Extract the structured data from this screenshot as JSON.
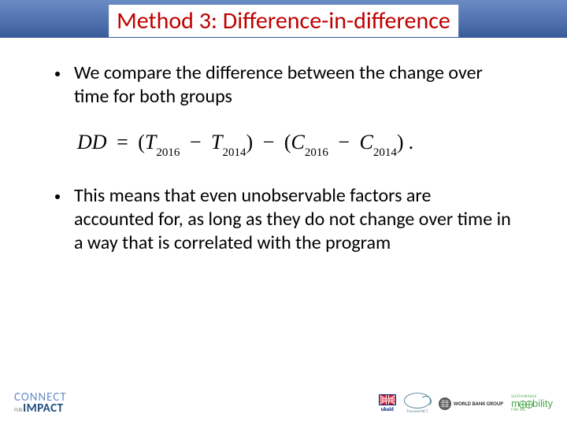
{
  "header": {
    "title": "Method 3: Difference-in-difference",
    "gradient_top": "#6a8bc4",
    "gradient_bottom": "#395a99",
    "title_color": "#c00000",
    "title_fontsize": 30
  },
  "bullets": [
    {
      "text": "We compare the difference between the change over time for both groups"
    },
    {
      "text": "This means that even unobservable factors are accounted for, as long as they do not change over time in a way that is correlated with the program"
    }
  ],
  "equation": {
    "lhs": "DD",
    "t_symbol": "T",
    "c_symbol": "C",
    "year_b": "2016",
    "year_a": "2014",
    "text_repr": "DD = (T_2016 − T_2014) − (C_2016 − C_2014)."
  },
  "body": {
    "bullet_fontsize": 24,
    "bullet_color": "#000000",
    "equation_fontsize": 26
  },
  "footer": {
    "connect_logo": {
      "line1": "CONNECT",
      "for": "FOR",
      "line2": "IMPACT",
      "color_light": "#6a8bc4",
      "color_dark": "#1a4a7a"
    },
    "ukaid": {
      "label": "ukaid"
    },
    "oval": {
      "label": "Transnet-NCT"
    },
    "wbg": {
      "label": "WORLD BANK GROUP"
    },
    "mobility": {
      "top": "SUSTAINABLE",
      "word_pre": "m",
      "word_post": "bility",
      "sub": "FOR ALL",
      "color": "#4aa84a"
    }
  }
}
